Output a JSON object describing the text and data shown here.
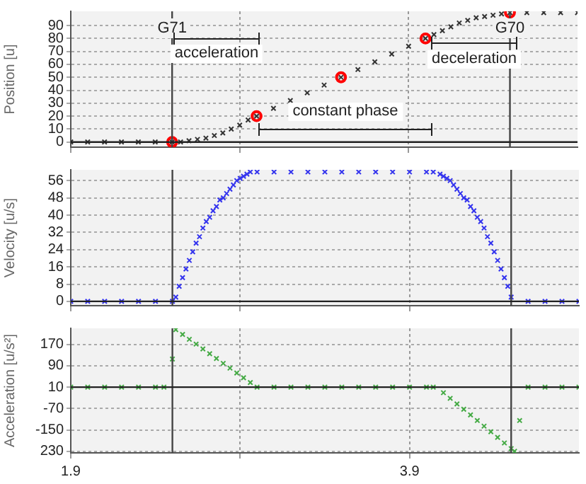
{
  "chart_data": [
    {
      "type": "scatter",
      "ylabel": "Position [u]",
      "xlim": [
        1.9,
        4.9
      ],
      "ylim": [
        -4,
        101
      ],
      "yticks": [
        0,
        10,
        20,
        30,
        40,
        50,
        60,
        70,
        80,
        90
      ],
      "grid": true,
      "tick_labels": "y",
      "legend": false,
      "series": [
        {
          "color": "#333333",
          "marker": "cross",
          "x": [
            1.9,
            2.0,
            2.1,
            2.2,
            2.3,
            2.4,
            2.5,
            2.55,
            2.6,
            2.65,
            2.7,
            2.75,
            2.8,
            2.85,
            2.9,
            2.95,
            3.0,
            3.1,
            3.2,
            3.3,
            3.4,
            3.5,
            3.6,
            3.7,
            3.8,
            3.9,
            4.0,
            4.05,
            4.1,
            4.15,
            4.2,
            4.25,
            4.3,
            4.35,
            4.4,
            4.45,
            4.5,
            4.6,
            4.7,
            4.8,
            4.9
          ],
          "values": [
            0,
            0,
            0,
            0,
            0,
            0,
            0,
            0,
            1,
            2,
            3,
            5,
            7,
            10,
            13,
            17,
            20,
            26,
            32,
            38,
            44,
            50,
            56,
            62,
            68,
            74,
            80,
            83,
            86,
            89,
            92,
            94,
            96,
            97,
            98,
            99,
            100,
            100,
            100,
            100,
            100
          ]
        },
        {
          "color": "#ff0000",
          "marker": "circle",
          "x": [
            2.5,
            3.0,
            3.5,
            4.0,
            4.5
          ],
          "values": [
            0,
            20,
            50,
            80,
            100
          ]
        }
      ],
      "ref_lines": [
        {
          "axis": "x",
          "value": 2.5,
          "label": "G71",
          "color": "#444444"
        },
        {
          "axis": "x",
          "value": 4.5,
          "label": "G70",
          "color": "#444444"
        },
        {
          "axis": "y",
          "value": 0,
          "color": "#222222"
        }
      ],
      "annotations": [
        "acceleration",
        "constant phase",
        "deceleration"
      ]
    },
    {
      "type": "scatter",
      "ylabel": "Velocity [u/s]",
      "xlim": [
        1.9,
        4.9
      ],
      "ylim": [
        -2,
        61
      ],
      "yticks": [
        0,
        8,
        16,
        24,
        32,
        40,
        48,
        56
      ],
      "grid": true,
      "tick_labels": "y",
      "legend": false,
      "series": [
        {
          "color": "#3333ee",
          "marker": "cross",
          "x": [
            1.9,
            2.0,
            2.1,
            2.2,
            2.3,
            2.4,
            2.5,
            2.52,
            2.54,
            2.56,
            2.58,
            2.6,
            2.62,
            2.64,
            2.66,
            2.68,
            2.7,
            2.72,
            2.74,
            2.76,
            2.78,
            2.8,
            2.82,
            2.84,
            2.86,
            2.88,
            2.9,
            2.92,
            2.94,
            2.96,
            3.0,
            3.1,
            3.2,
            3.3,
            3.4,
            3.5,
            3.6,
            3.7,
            3.8,
            3.9,
            4.0,
            4.04,
            4.08,
            4.1,
            4.12,
            4.14,
            4.16,
            4.18,
            4.2,
            4.22,
            4.24,
            4.26,
            4.28,
            4.3,
            4.32,
            4.34,
            4.36,
            4.38,
            4.4,
            4.42,
            4.44,
            4.46,
            4.48,
            4.5,
            4.6,
            4.7,
            4.8,
            4.9
          ],
          "values": [
            0,
            0,
            0,
            0,
            0,
            0,
            0,
            2,
            7,
            11,
            15,
            19,
            23,
            27,
            30,
            34,
            37,
            39,
            42,
            44,
            47,
            48,
            50,
            52,
            54,
            56,
            57,
            58,
            59,
            60,
            60,
            60,
            60,
            60,
            60,
            60,
            60,
            60,
            60,
            60,
            60,
            60,
            59,
            58,
            57,
            56,
            54,
            52,
            50,
            48,
            47,
            44,
            42,
            39,
            37,
            34,
            30,
            27,
            23,
            19,
            15,
            11,
            7,
            2,
            0,
            0,
            0,
            0
          ]
        }
      ],
      "ref_lines": [
        {
          "axis": "x",
          "value": 2.5,
          "color": "#444444"
        },
        {
          "axis": "x",
          "value": 4.5,
          "color": "#444444"
        },
        {
          "axis": "y",
          "value": 0,
          "color": "#222222"
        }
      ]
    },
    {
      "type": "scatter",
      "ylabel": "Acceleration [u/s²]",
      "xlim": [
        1.9,
        4.9
      ],
      "xticks": [
        1.9,
        {
          "value": 2.9,
          "label": null
        },
        3.9
      ],
      "ylim": [
        -236,
        230
      ],
      "yticks": [
        170,
        90,
        10,
        -70,
        -150,
        {
          "value": -230,
          "label": "230"
        }
      ],
      "grid": true,
      "legend": false,
      "series": [
        {
          "color": "#44aa44",
          "marker": "cross",
          "x": [
            1.9,
            2.0,
            2.1,
            2.2,
            2.3,
            2.4,
            2.45,
            2.5,
            2.52,
            2.56,
            2.6,
            2.64,
            2.68,
            2.72,
            2.76,
            2.8,
            2.84,
            2.88,
            2.92,
            2.96,
            3.0,
            3.1,
            3.2,
            3.3,
            3.4,
            3.5,
            3.6,
            3.7,
            3.8,
            3.9,
            4.0,
            4.04,
            4.1,
            4.14,
            4.18,
            4.22,
            4.26,
            4.3,
            4.34,
            4.38,
            4.42,
            4.46,
            4.5,
            4.52,
            4.55,
            4.6,
            4.7,
            4.8,
            4.9
          ],
          "values": [
            10,
            10,
            10,
            10,
            10,
            10,
            10,
            115,
            225,
            207,
            189,
            171,
            153,
            135,
            117,
            99,
            81,
            63,
            45,
            27,
            10,
            10,
            10,
            10,
            10,
            10,
            10,
            10,
            10,
            10,
            10,
            10,
            -11,
            -32,
            -53,
            -73,
            -94,
            -115,
            -136,
            -157,
            -178,
            -199,
            -220,
            -230,
            -115,
            10,
            10,
            10,
            10
          ]
        }
      ],
      "ref_lines": [
        {
          "axis": "x",
          "value": 2.5,
          "color": "#444444"
        },
        {
          "axis": "x",
          "value": 4.5,
          "color": "#444444"
        },
        {
          "axis": "y",
          "value": 10,
          "color": "#222222"
        }
      ]
    }
  ]
}
